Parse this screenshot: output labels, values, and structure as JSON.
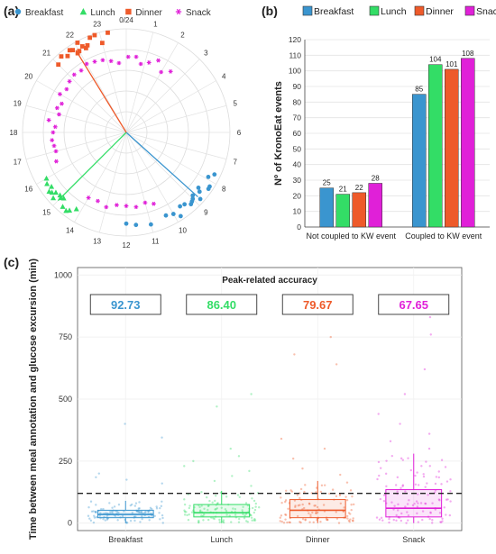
{
  "panel_labels": {
    "a": "(a)",
    "b": "(b)",
    "c": "(c)"
  },
  "meal_colors": {
    "Breakfast": "#3a95cf",
    "Lunch": "#33dd66",
    "Dinner": "#ee5a2a",
    "Snack": "#e020d8"
  },
  "chart_data": [
    {
      "type": "scatter",
      "subtype": "polar-clock",
      "legend": [
        {
          "name": "Breakfast",
          "color": "#3a95cf",
          "marker": "circle"
        },
        {
          "name": "Lunch",
          "color": "#33dd66",
          "marker": "triangle"
        },
        {
          "name": "Dinner",
          "color": "#ee5a2a",
          "marker": "square"
        },
        {
          "name": "Snack",
          "color": "#e020d8",
          "marker": "asterisk"
        }
      ],
      "hour_labels": [
        "0/24",
        "1",
        "2",
        "3",
        "4",
        "5",
        "6",
        "7",
        "8",
        "9",
        "10",
        "11",
        "12",
        "13",
        "14",
        "15",
        "16",
        "17",
        "18",
        "19",
        "20",
        "21",
        "22",
        "23"
      ],
      "mean_direction_hours": {
        "Breakfast": 8.8,
        "Lunch": 15.0,
        "Dinner": 21.9,
        "Snack": null
      },
      "series": [
        {
          "name": "Breakfast",
          "hours": [
            8.2,
            8.3,
            8.5,
            8.6,
            8.8,
            8.9,
            9.0,
            9.1,
            9.2,
            9.4,
            9.6,
            9.8,
            10.0,
            10.3,
            11.0,
            11.6,
            12.0,
            7.7,
            7.9
          ]
        },
        {
          "name": "Lunch",
          "hours": [
            14.2,
            14.5,
            14.7,
            14.9,
            15.0,
            15.1,
            15.2,
            15.3,
            15.4,
            15.5,
            15.6,
            15.8,
            16.0,
            14.4
          ]
        },
        {
          "name": "Dinner",
          "hours": [
            21.0,
            21.3,
            21.5,
            21.7,
            21.8,
            21.9,
            22.0,
            22.1,
            22.2,
            22.3,
            22.4,
            22.6,
            22.8,
            23.0,
            23.3
          ]
        },
        {
          "name": "Snack",
          "hours": [
            0.1,
            0.5,
            0.8,
            1.2,
            1.6,
            2.0,
            2.4,
            10.6,
            11.0,
            11.5,
            12.0,
            12.5,
            13.0,
            13.5,
            14.0,
            16.5,
            17.0,
            17.3,
            17.6,
            18.0,
            18.3,
            18.6,
            19.0,
            19.3,
            19.6,
            20.0,
            20.4,
            20.8,
            21.2,
            21.6,
            22.0,
            22.4,
            22.8,
            23.2,
            23.6
          ]
        }
      ]
    },
    {
      "type": "bar",
      "ylabel": "Nº of KronoEat events",
      "ylim": [
        0,
        120
      ],
      "yticks": [
        0,
        10,
        20,
        30,
        40,
        50,
        60,
        70,
        80,
        90,
        100,
        110,
        120
      ],
      "categories": [
        "Not coupled to KW event",
        "Coupled to KW event"
      ],
      "series": [
        {
          "name": "Breakfast",
          "color": "#3a95cf",
          "values": [
            25,
            85
          ]
        },
        {
          "name": "Lunch",
          "color": "#33dd66",
          "values": [
            21,
            104
          ]
        },
        {
          "name": "Dinner",
          "color": "#ee5a2a",
          "values": [
            22,
            101
          ]
        },
        {
          "name": "Snack",
          "color": "#e020d8",
          "values": [
            28,
            108
          ]
        }
      ]
    },
    {
      "type": "box",
      "ylabel": "Time between meal annotation and glucose excursion (min)",
      "ylim": [
        -30,
        1030
      ],
      "yticks": [
        0,
        250,
        500,
        750,
        1000
      ],
      "threshold": 120,
      "inset_title": "Peak-related accuracy",
      "categories": [
        "Breakfast",
        "Lunch",
        "Dinner",
        "Snack"
      ],
      "accuracy_labels": [
        "92.73",
        "86.40",
        "79.67",
        "67.65"
      ],
      "series": [
        {
          "name": "Breakfast",
          "color": "#3a95cf",
          "q1": 22,
          "median": 35,
          "q3": 52,
          "whisker_low": 0,
          "whisker_high": 90,
          "outliers": [
            160,
            175,
            185,
            200,
            345,
            400
          ]
        },
        {
          "name": "Lunch",
          "color": "#33dd66",
          "q1": 25,
          "median": 42,
          "q3": 75,
          "whisker_low": 0,
          "whisker_high": 130,
          "outliers": [
            150,
            170,
            190,
            210,
            230,
            250,
            270,
            300,
            470,
            520
          ]
        },
        {
          "name": "Dinner",
          "color": "#ee5a2a",
          "q1": 22,
          "median": 52,
          "q3": 95,
          "whisker_low": 0,
          "whisker_high": 170,
          "outliers": [
            195,
            220,
            260,
            300,
            340,
            640,
            680,
            750
          ]
        },
        {
          "name": "Snack",
          "color": "#e020d8",
          "q1": 25,
          "median": 60,
          "q3": 135,
          "whisker_low": 0,
          "whisker_high": 280,
          "outliers": [
            300,
            330,
            360,
            400,
            440,
            520,
            620,
            760,
            830
          ]
        }
      ]
    }
  ]
}
